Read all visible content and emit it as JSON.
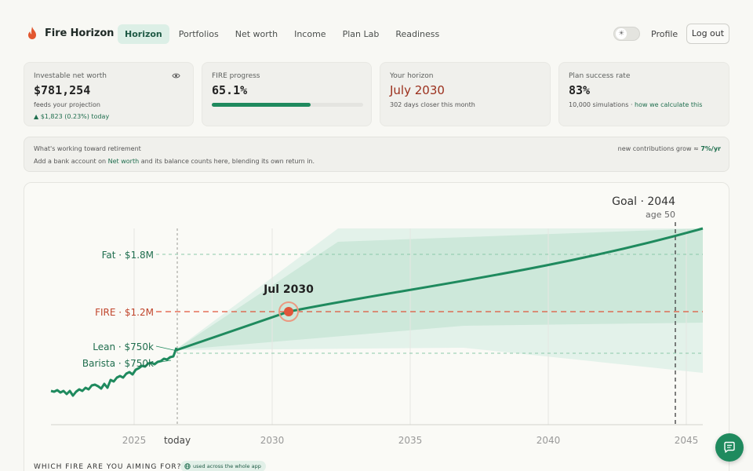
{
  "brand": {
    "name": "Fire Horizon",
    "icon": "flame-icon"
  },
  "nav": {
    "links": [
      "Horizon",
      "Portfolios",
      "Net worth",
      "Income",
      "Plan Lab",
      "Readiness"
    ],
    "active": "Horizon",
    "profile": "Profile",
    "logout": "Log out",
    "theme_icon": "sun-icon"
  },
  "cards": {
    "net_worth": {
      "label": "Investable net worth",
      "value": "$781,254",
      "sub": "feeds your projection",
      "change": "▲ $1,823  (0.23%) today",
      "icon": "eye-icon"
    },
    "fire_progress": {
      "label": "FIRE progress",
      "value": "65.1%",
      "progress": 0.651
    },
    "horizon": {
      "label": "Your horizon",
      "value": "July 2030",
      "sub": "302 days closer this month"
    },
    "success": {
      "label": "Plan success rate",
      "value": "83%",
      "sub_prefix": "10,000 simulations · ",
      "sub_link": "how we calculate this"
    }
  },
  "banner": {
    "title": "What's working toward retirement",
    "text_prefix": "Add a bank account on ",
    "text_link": "Net worth",
    "text_suffix": " and its balance counts here, blending its own return in.",
    "right_prefix": "new contributions grow ≈ ",
    "right_value": "7%/yr"
  },
  "chart": {
    "goal_label": "Goal · 2044",
    "goal_sub": "age 50",
    "marker_label": "Jul 2030",
    "lines": {
      "fat": "Fat · $1.8M",
      "fire": "FIRE · $1.2M",
      "lean": "Lean · $750k",
      "barista": "Barista · $750k"
    },
    "x_ticks": [
      "2025",
      "today",
      "2030",
      "2035",
      "2040",
      "2045"
    ],
    "colors": {
      "accent": "#1f8a5e",
      "fire": "#e0553a",
      "band_outer": "#e3f2ea",
      "band_inner": "#cde8da"
    }
  },
  "footer": {
    "question": "Which FIRE are you aiming for?",
    "pill": "used across the whole app"
  },
  "fab_icon": "chat-icon"
}
